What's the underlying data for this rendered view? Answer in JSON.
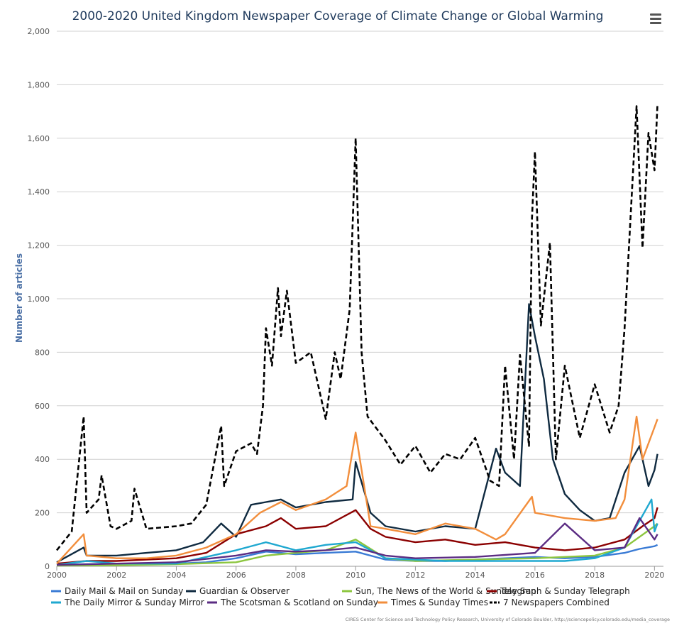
{
  "menu_icon": "hamburger-menu-icon",
  "credit": "CIRES Center for Science and Technology Policy Research, University of Colorado Boulder, http://sciencepolicy.colorado.edu/media_coverage",
  "chart_data": {
    "type": "line",
    "title": "2000-2020 United Kingdom Newspaper Coverage of Climate Change or Global Warming",
    "xlabel": "",
    "ylabel": "Number of articles",
    "xlim": [
      2000,
      2020.3
    ],
    "ylim": [
      0,
      2000
    ],
    "x_ticks": [
      "2000",
      "2002",
      "2004",
      "2006",
      "2008",
      "2010",
      "2012",
      "2014",
      "2016",
      "2018",
      "2020"
    ],
    "y_ticks": [
      "0",
      "200",
      "400",
      "600",
      "800",
      "1,000",
      "1,200",
      "1,400",
      "1,600",
      "1,800",
      "2,000"
    ],
    "grid": true,
    "legend_position": "bottom",
    "series": [
      {
        "name": "Daily Mail & Mail on Sunday",
        "color": "#3a7bd5",
        "dash": "",
        "x": [
          2000,
          2001,
          2002,
          2003,
          2004,
          2005,
          2006,
          2007,
          2008,
          2009,
          2010,
          2011,
          2012,
          2013,
          2014,
          2015,
          2016,
          2017,
          2018,
          2019,
          2019.5,
          2020,
          2020.1
        ],
        "y": [
          5,
          8,
          8,
          8,
          10,
          15,
          30,
          55,
          45,
          50,
          55,
          25,
          20,
          20,
          25,
          30,
          35,
          30,
          35,
          50,
          65,
          75,
          80
        ]
      },
      {
        "name": "Guardian & Observer",
        "color": "#0f2a40",
        "dash": "",
        "x": [
          2000,
          2000.9,
          2001,
          2002,
          2003,
          2004,
          2004.9,
          2005.5,
          2006,
          2006.5,
          2007,
          2007.5,
          2008,
          2009,
          2009.9,
          2010,
          2010.5,
          2011,
          2012,
          2013,
          2014,
          2014.7,
          2015,
          2015.5,
          2015.8,
          2016,
          2016.3,
          2016.6,
          2017,
          2017.5,
          2018,
          2018.5,
          2019,
          2019.5,
          2019.8,
          2020,
          2020.1
        ],
        "y": [
          15,
          70,
          40,
          40,
          50,
          60,
          90,
          160,
          110,
          230,
          240,
          250,
          220,
          240,
          250,
          390,
          200,
          150,
          130,
          150,
          140,
          440,
          350,
          300,
          980,
          860,
          700,
          400,
          270,
          210,
          170,
          180,
          350,
          450,
          300,
          360,
          420
        ]
      },
      {
        "name": "Sun, The News of the World & Sunday Sun",
        "color": "#8cc63f",
        "dash": "",
        "x": [
          2000,
          2002,
          2004,
          2006,
          2007,
          2008,
          2009,
          2010,
          2011,
          2012,
          2014,
          2016,
          2018,
          2019,
          2020,
          2020.1
        ],
        "y": [
          3,
          4,
          8,
          15,
          40,
          50,
          60,
          100,
          30,
          20,
          25,
          30,
          40,
          70,
          150,
          160
        ]
      },
      {
        "name": "Telegraph & Sunday Telegraph",
        "color": "#8b0000",
        "dash": "",
        "x": [
          2000,
          2001,
          2002,
          2003,
          2004,
          2005,
          2006,
          2007,
          2007.5,
          2008,
          2009,
          2010,
          2010.5,
          2011,
          2012,
          2013,
          2014,
          2015,
          2016,
          2017,
          2018,
          2019,
          2019.6,
          2020,
          2020.1
        ],
        "y": [
          10,
          20,
          20,
          25,
          30,
          50,
          120,
          150,
          180,
          140,
          150,
          210,
          140,
          110,
          90,
          100,
          80,
          90,
          70,
          60,
          70,
          100,
          150,
          180,
          220
        ]
      },
      {
        "name": "The Daily Mirror & Sunday Mirror",
        "color": "#1fa8d0",
        "dash": "",
        "x": [
          2000,
          2001,
          2002,
          2004,
          2006,
          2007,
          2008,
          2009,
          2010,
          2011,
          2013,
          2015,
          2017,
          2018,
          2019,
          2019.9,
          2020,
          2020.1
        ],
        "y": [
          5,
          20,
          10,
          10,
          60,
          90,
          60,
          80,
          90,
          30,
          20,
          20,
          20,
          30,
          70,
          250,
          130,
          160
        ]
      },
      {
        "name": "The Scotsman & Scotland on Sunday",
        "color": "#5b2c83",
        "dash": "",
        "x": [
          2000,
          2002,
          2004,
          2006,
          2007,
          2008,
          2009,
          2010,
          2011,
          2012,
          2014,
          2016,
          2017,
          2018,
          2019,
          2019.5,
          2020,
          2020.1
        ],
        "y": [
          5,
          10,
          15,
          40,
          60,
          55,
          60,
          70,
          40,
          30,
          35,
          50,
          160,
          60,
          70,
          180,
          100,
          120
        ]
      },
      {
        "name": "Times & Sunday Times",
        "color": "#f28e3c",
        "dash": "",
        "x": [
          2000,
          2000.9,
          2001,
          2002,
          2003,
          2004,
          2005,
          2006,
          2006.8,
          2007.5,
          2008,
          2009,
          2009.7,
          2010,
          2010.5,
          2011,
          2012,
          2013,
          2014,
          2014.7,
          2015,
          2015.9,
          2016,
          2017,
          2018,
          2018.7,
          2019,
          2019.4,
          2019.6,
          2020,
          2020.1
        ],
        "y": [
          10,
          120,
          40,
          30,
          30,
          40,
          70,
          120,
          200,
          240,
          210,
          250,
          300,
          500,
          150,
          140,
          120,
          160,
          140,
          100,
          120,
          260,
          200,
          180,
          170,
          180,
          250,
          560,
          400,
          520,
          550
        ]
      },
      {
        "name": "7 Newspapers Combined",
        "color": "#000000",
        "dash": "7,4",
        "x": [
          2000,
          2000.5,
          2000.9,
          2001,
          2001.4,
          2001.5,
          2001.8,
          2002,
          2002.5,
          2002.6,
          2003,
          2004,
          2004.5,
          2005,
          2005.5,
          2005.6,
          2006,
          2006.5,
          2006.7,
          2006.9,
          2007,
          2007.2,
          2007.4,
          2007.5,
          2007.7,
          2008,
          2008.5,
          2008.9,
          2009,
          2009.3,
          2009.5,
          2009.8,
          2010,
          2010.2,
          2010.4,
          2010.8,
          2011,
          2011.5,
          2012,
          2012.5,
          2013,
          2013.5,
          2014,
          2014.5,
          2014.8,
          2015,
          2015.3,
          2015.5,
          2015.8,
          2015.9,
          2016,
          2016.2,
          2016.5,
          2016.7,
          2017,
          2017.5,
          2018,
          2018.5,
          2018.8,
          2019,
          2019.4,
          2019.6,
          2019.8,
          2020,
          2020.1
        ],
        "y": [
          60,
          130,
          560,
          200,
          250,
          340,
          150,
          140,
          170,
          290,
          140,
          150,
          160,
          230,
          525,
          300,
          430,
          460,
          420,
          600,
          890,
          750,
          1040,
          860,
          1030,
          760,
          800,
          600,
          550,
          800,
          700,
          960,
          1600,
          800,
          560,
          500,
          470,
          380,
          450,
          350,
          420,
          400,
          480,
          320,
          300,
          750,
          400,
          790,
          450,
          1300,
          1550,
          900,
          1210,
          400,
          750,
          480,
          680,
          500,
          600,
          890,
          1720,
          1190,
          1620,
          1480,
          1730
        ]
      }
    ]
  }
}
